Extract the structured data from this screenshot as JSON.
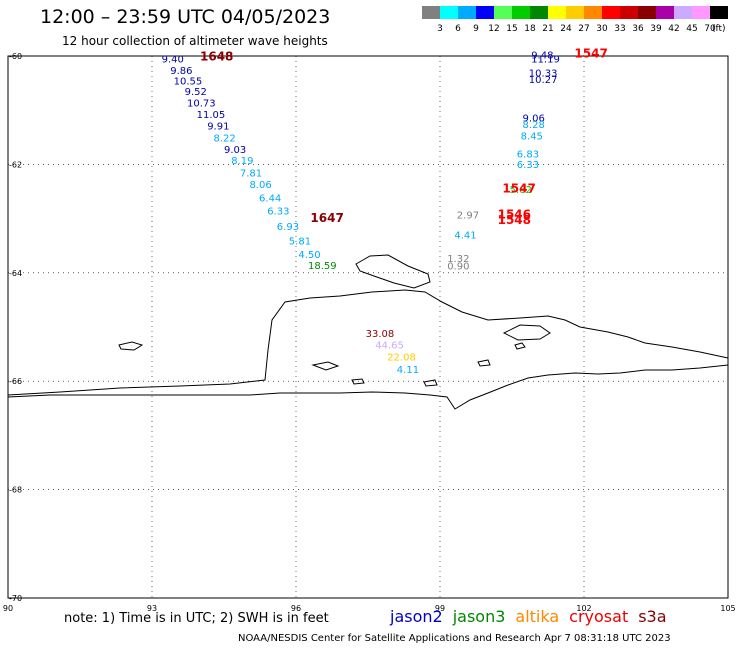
{
  "header": {
    "title": "12:00 – 23:59 UTC 04/05/2023",
    "subtitle": "12 hour collection of altimeter wave heights"
  },
  "legend": {
    "unit": "(ft)",
    "bins": [
      {
        "label": "3",
        "color": "#808080"
      },
      {
        "label": "6",
        "color": "#00ffff"
      },
      {
        "label": "9",
        "color": "#00aaff"
      },
      {
        "label": "12",
        "color": "#0000ff"
      },
      {
        "label": "15",
        "color": "#55ff55"
      },
      {
        "label": "18",
        "color": "#00cc00"
      },
      {
        "label": "21",
        "color": "#008800"
      },
      {
        "label": "24",
        "color": "#ffff00"
      },
      {
        "label": "27",
        "color": "#ffcc00"
      },
      {
        "label": "30",
        "color": "#ff8800"
      },
      {
        "label": "33",
        "color": "#ff0000"
      },
      {
        "label": "36",
        "color": "#cc0000"
      },
      {
        "label": "39",
        "color": "#880000"
      },
      {
        "label": "42",
        "color": "#aa00aa"
      },
      {
        "label": "45",
        "color": "#ccaaff"
      },
      {
        "label": "70",
        "color": "#ff99ff"
      },
      {
        "label": "",
        "color": "#000000"
      }
    ]
  },
  "map": {
    "lon_range": [
      90,
      105
    ],
    "lat_range": [
      -70,
      -60
    ],
    "x_ticks": [
      90,
      93,
      96,
      99,
      102,
      105
    ],
    "x_tick_labels": [
      "90",
      "93",
      "96",
      "99",
      "102",
      "105"
    ],
    "y_ticks": [
      -60,
      -62,
      -64,
      -66,
      -68,
      -70
    ],
    "y_tick_labels": [
      "-60",
      "-62",
      "-64",
      "-66",
      "-68",
      "-70"
    ]
  },
  "track_times": [
    {
      "text": "1648",
      "lon": 94.0,
      "lat": -60.08,
      "color": "#880000"
    },
    {
      "text": "1647",
      "lon": 96.3,
      "lat": -63.06,
      "color": "#880000"
    },
    {
      "text": "1547",
      "lon": 101.8,
      "lat": -60.03,
      "color": "#ff0000"
    },
    {
      "text": "1547",
      "lon": 100.3,
      "lat": -62.52,
      "color": "#ff0000"
    },
    {
      "text": "1546",
      "lon": 100.2,
      "lat": -63.0,
      "color": "#ff0000"
    },
    {
      "text": "1548",
      "lon": 100.2,
      "lat": -63.1,
      "color": "#ff0000"
    }
  ],
  "observations": [
    {
      "text": "9.40",
      "lon": 93.2,
      "lat": -60.12,
      "color": "#0000aa"
    },
    {
      "text": "9.86",
      "lon": 93.38,
      "lat": -60.33,
      "color": "#0000aa"
    },
    {
      "text": "10.55",
      "lon": 93.45,
      "lat": -60.53,
      "color": "#0000aa"
    },
    {
      "text": "9.52",
      "lon": 93.68,
      "lat": -60.72,
      "color": "#0000aa"
    },
    {
      "text": "10.73",
      "lon": 93.73,
      "lat": -60.93,
      "color": "#0000aa"
    },
    {
      "text": "11.05",
      "lon": 93.93,
      "lat": -61.14,
      "color": "#0000aa"
    },
    {
      "text": "9.91",
      "lon": 94.15,
      "lat": -61.36,
      "color": "#0000aa"
    },
    {
      "text": "8.22",
      "lon": 94.28,
      "lat": -61.58,
      "color": "#00aaff"
    },
    {
      "text": "9.03",
      "lon": 94.5,
      "lat": -61.79,
      "color": "#0000aa"
    },
    {
      "text": "8.19",
      "lon": 94.65,
      "lat": -61.99,
      "color": "#00aaff"
    },
    {
      "text": "7.81",
      "lon": 94.83,
      "lat": -62.22,
      "color": "#00aaff"
    },
    {
      "text": "8.06",
      "lon": 95.03,
      "lat": -62.44,
      "color": "#00aaff"
    },
    {
      "text": "6.44",
      "lon": 95.23,
      "lat": -62.68,
      "color": "#00aaff"
    },
    {
      "text": "6.33",
      "lon": 95.4,
      "lat": -62.92,
      "color": "#00aaff"
    },
    {
      "text": "6.93",
      "lon": 95.6,
      "lat": -63.21,
      "color": "#00aaff"
    },
    {
      "text": "5.81",
      "lon": 95.85,
      "lat": -63.48,
      "color": "#00aaff"
    },
    {
      "text": "4.50",
      "lon": 96.05,
      "lat": -63.73,
      "color": "#00aaff"
    },
    {
      "text": "18.59",
      "lon": 96.25,
      "lat": -63.93,
      "color": "#008800"
    },
    {
      "text": "9.48",
      "lon": 100.9,
      "lat": -60.05,
      "color": "#0000aa"
    },
    {
      "text": "11.19",
      "lon": 100.9,
      "lat": -60.12,
      "color": "#0000aa"
    },
    {
      "text": "10.33",
      "lon": 100.85,
      "lat": -60.38,
      "color": "#0000aa"
    },
    {
      "text": "10.27",
      "lon": 100.85,
      "lat": -60.5,
      "color": "#0000aa"
    },
    {
      "text": "9.06",
      "lon": 100.72,
      "lat": -61.21,
      "color": "#0000aa"
    },
    {
      "text": "8.28",
      "lon": 100.72,
      "lat": -61.33,
      "color": "#00aaff"
    },
    {
      "text": "8.45",
      "lon": 100.68,
      "lat": -61.54,
      "color": "#00aaff"
    },
    {
      "text": "6.83",
      "lon": 100.6,
      "lat": -61.87,
      "color": "#00aaff"
    },
    {
      "text": "6.33",
      "lon": 100.6,
      "lat": -62.07,
      "color": "#00aaff"
    },
    {
      "text": "5.62",
      "lon": 100.45,
      "lat": -62.53,
      "color": "#00cc00"
    },
    {
      "text": "2.97",
      "lon": 99.35,
      "lat": -63.0,
      "color": "#808080"
    },
    {
      "text": "4.41",
      "lon": 99.3,
      "lat": -63.37,
      "color": "#00aaff"
    },
    {
      "text": "1.32",
      "lon": 99.15,
      "lat": -63.8,
      "color": "#808080"
    },
    {
      "text": "0.90",
      "lon": 99.15,
      "lat": -63.94,
      "color": "#808080"
    },
    {
      "text": "33.08",
      "lon": 97.45,
      "lat": -65.18,
      "color": "#880000"
    },
    {
      "text": "44.65",
      "lon": 97.65,
      "lat": -65.4,
      "color": "#ccaaff"
    },
    {
      "text": "22.08",
      "lon": 97.9,
      "lat": -65.62,
      "color": "#ffcc00"
    },
    {
      "text": "4.11",
      "lon": 98.1,
      "lat": -65.85,
      "color": "#00aaff"
    }
  ],
  "satellites": [
    {
      "name": "jason2",
      "color": "#0000cc"
    },
    {
      "name": "jason3",
      "color": "#008800"
    },
    {
      "name": "altika",
      "color": "#ff8800"
    },
    {
      "name": "cryosat",
      "color": "#ee0000"
    },
    {
      "name": "s3a",
      "color": "#880000"
    }
  ],
  "footer": {
    "note": "note: 1) Time is in UTC; 2) SWH is in feet",
    "credit": "NOAA/NESDIS Center for Satellite Applications and Research     Apr  7 08:31:18 UTC 2023"
  }
}
